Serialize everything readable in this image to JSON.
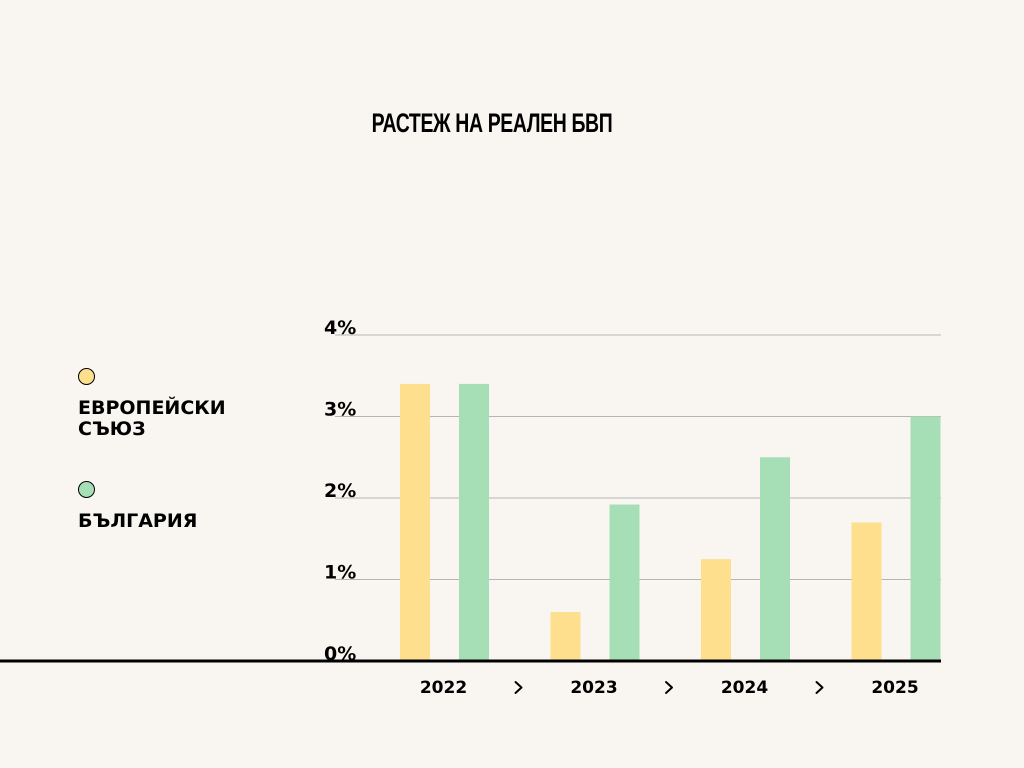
{
  "colors": {
    "background": "#f9f6f1",
    "eu": "#fddf8d",
    "bg": "#a6dfb5",
    "grid": "#b5b5b5",
    "baseline": "#000000"
  },
  "chart_data": {
    "type": "bar",
    "title": "РАСТЕЖ НА РЕАЛЕН БВП",
    "xlabel": "",
    "ylabel": "",
    "categories": [
      "2022",
      "2023",
      "2024",
      "2025"
    ],
    "separator_icon": "chevron-right-icon",
    "series": [
      {
        "name": "ЕВРОПЕЙСКИ СЪЮЗ",
        "values": [
          3.4,
          0.6,
          1.25,
          1.7
        ]
      },
      {
        "name": "БЪЛГАРИЯ",
        "values": [
          3.4,
          1.92,
          2.5,
          3.0
        ]
      }
    ],
    "yticks": [
      "0%",
      "1%",
      "2%",
      "3%",
      "4%"
    ],
    "ylim": [
      0,
      4
    ],
    "grid": true,
    "legend": "left"
  }
}
